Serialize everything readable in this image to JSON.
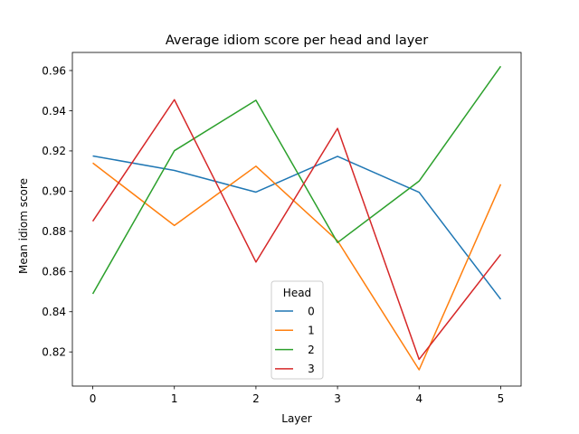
{
  "chart_data": {
    "type": "line",
    "title": "Average idiom score per head and layer",
    "xlabel": "Layer",
    "ylabel": "Mean idiom score",
    "x": [
      0,
      1,
      2,
      3,
      4,
      5
    ],
    "xticks": [
      "0",
      "1",
      "2",
      "3",
      "4",
      "5"
    ],
    "xlim": [
      -0.25,
      5.25
    ],
    "ylim": [
      0.803,
      0.969
    ],
    "yticks": [
      "0.82",
      "0.84",
      "0.86",
      "0.88",
      "0.90",
      "0.92",
      "0.94",
      "0.96"
    ],
    "grid": false,
    "legend": {
      "title": "Head",
      "placement": "lower-center"
    },
    "series": [
      {
        "name": "0",
        "color": "#1f77b4",
        "values": [
          0.9175,
          0.9103,
          0.8995,
          0.9173,
          0.8994,
          0.8462
        ]
      },
      {
        "name": "1",
        "color": "#ff7f0e",
        "values": [
          0.914,
          0.8829,
          0.9124,
          0.8753,
          0.8111,
          0.9034
        ]
      },
      {
        "name": "2",
        "color": "#2ca02c",
        "values": [
          0.8489,
          0.9201,
          0.9452,
          0.8744,
          0.905,
          0.9621
        ]
      },
      {
        "name": "3",
        "color": "#d62728",
        "values": [
          0.885,
          0.9455,
          0.8647,
          0.9312,
          0.8163,
          0.8685
        ]
      }
    ]
  }
}
